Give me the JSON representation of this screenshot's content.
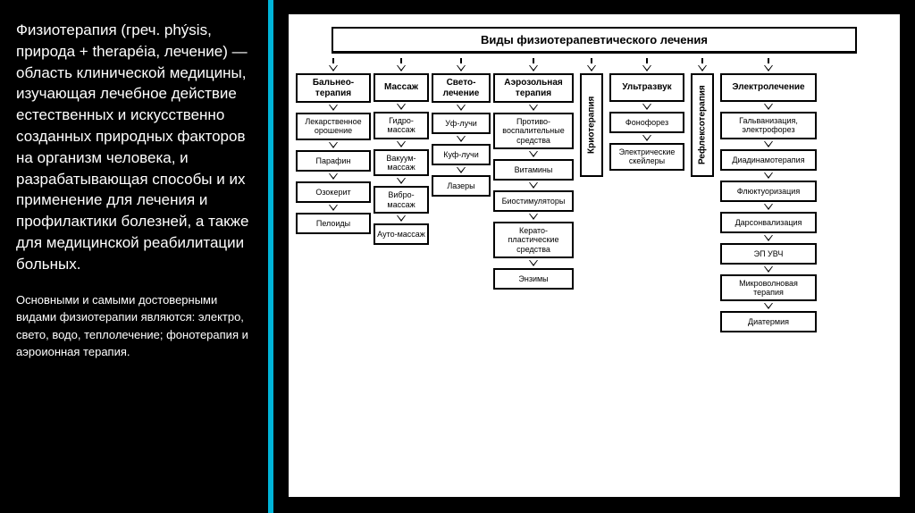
{
  "sidebar": {
    "main_text": "Физиотерапия (греч. phýsis, природа + therapéia, лечение) — область клинической медицины, изучающая лечебное действие естественных и искусственно созданных природных факторов на организм человека, и разрабатывающая способы и их применение для лечения и профилактики болезней, а также для медицинской реабилитации больных.",
    "sub_text": "Основными и самыми достоверными видами физиотерапии являются: электро, свето, водо, теплолечение; фонотерапия и аэроионная терапия."
  },
  "diagram": {
    "title": "Виды физиотерапевтического лечения",
    "columns": [
      {
        "head": "Бальнео-терапия",
        "items": [
          "Лекарственное орошение",
          "Парафин",
          "Озокерит",
          "Пелоиды"
        ]
      },
      {
        "head": "Массаж",
        "items": [
          "Гидро-массаж",
          "Вакуум-массаж",
          "Вибро-массаж",
          "Ауто-массаж"
        ]
      },
      {
        "head": "Свето-лечение",
        "items": [
          "Уф-лучи",
          "Куф-лучи",
          "Лазеры"
        ]
      },
      {
        "head": "Аэрозольная терапия",
        "items": [
          "Противо-воспалительные средства",
          "Витамины",
          "Биостимуляторы",
          "Керато-пластические средства",
          "Энзимы"
        ]
      },
      {
        "head": "Криотерапия",
        "vertical": true,
        "items": []
      },
      {
        "head": "Ультразвук",
        "items": [
          "Фонофорез",
          "Электрические скейлеры"
        ]
      },
      {
        "head": "Рефлексотерапия",
        "vertical": true,
        "items": []
      },
      {
        "head": "Электролечение",
        "items": [
          "Гальванизация, электрофорез",
          "Диадинамотерапия",
          "Флюктуоризация",
          "Дарсонвализация",
          "ЭП УВЧ",
          "Микроволновая терапия",
          "Диатермия"
        ]
      }
    ]
  },
  "colors": {
    "bg": "#000000",
    "divider": "#00b4d8",
    "diagram_bg": "#ffffff",
    "text_light": "#ffffff",
    "text_dark": "#000000",
    "border": "#000000"
  }
}
